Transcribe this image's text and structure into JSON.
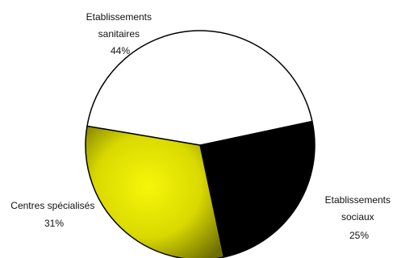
{
  "chart_data": {
    "type": "pie",
    "title": "",
    "slices": [
      {
        "label_lines": [
          "Etablissements",
          "sanitaires"
        ],
        "pct_text": "44%",
        "value": 44,
        "color": "#ffffff"
      },
      {
        "label_lines": [
          "Etablissements",
          "sociaux"
        ],
        "pct_text": "25%",
        "value": 25,
        "color": "#000000"
      },
      {
        "label_lines": [
          "Centres spécialisés"
        ],
        "pct_text": "31%",
        "value": 31,
        "color": "#e4e400"
      }
    ],
    "slice_outline": "#000000",
    "legend": "none",
    "style": "3d-beveled"
  }
}
